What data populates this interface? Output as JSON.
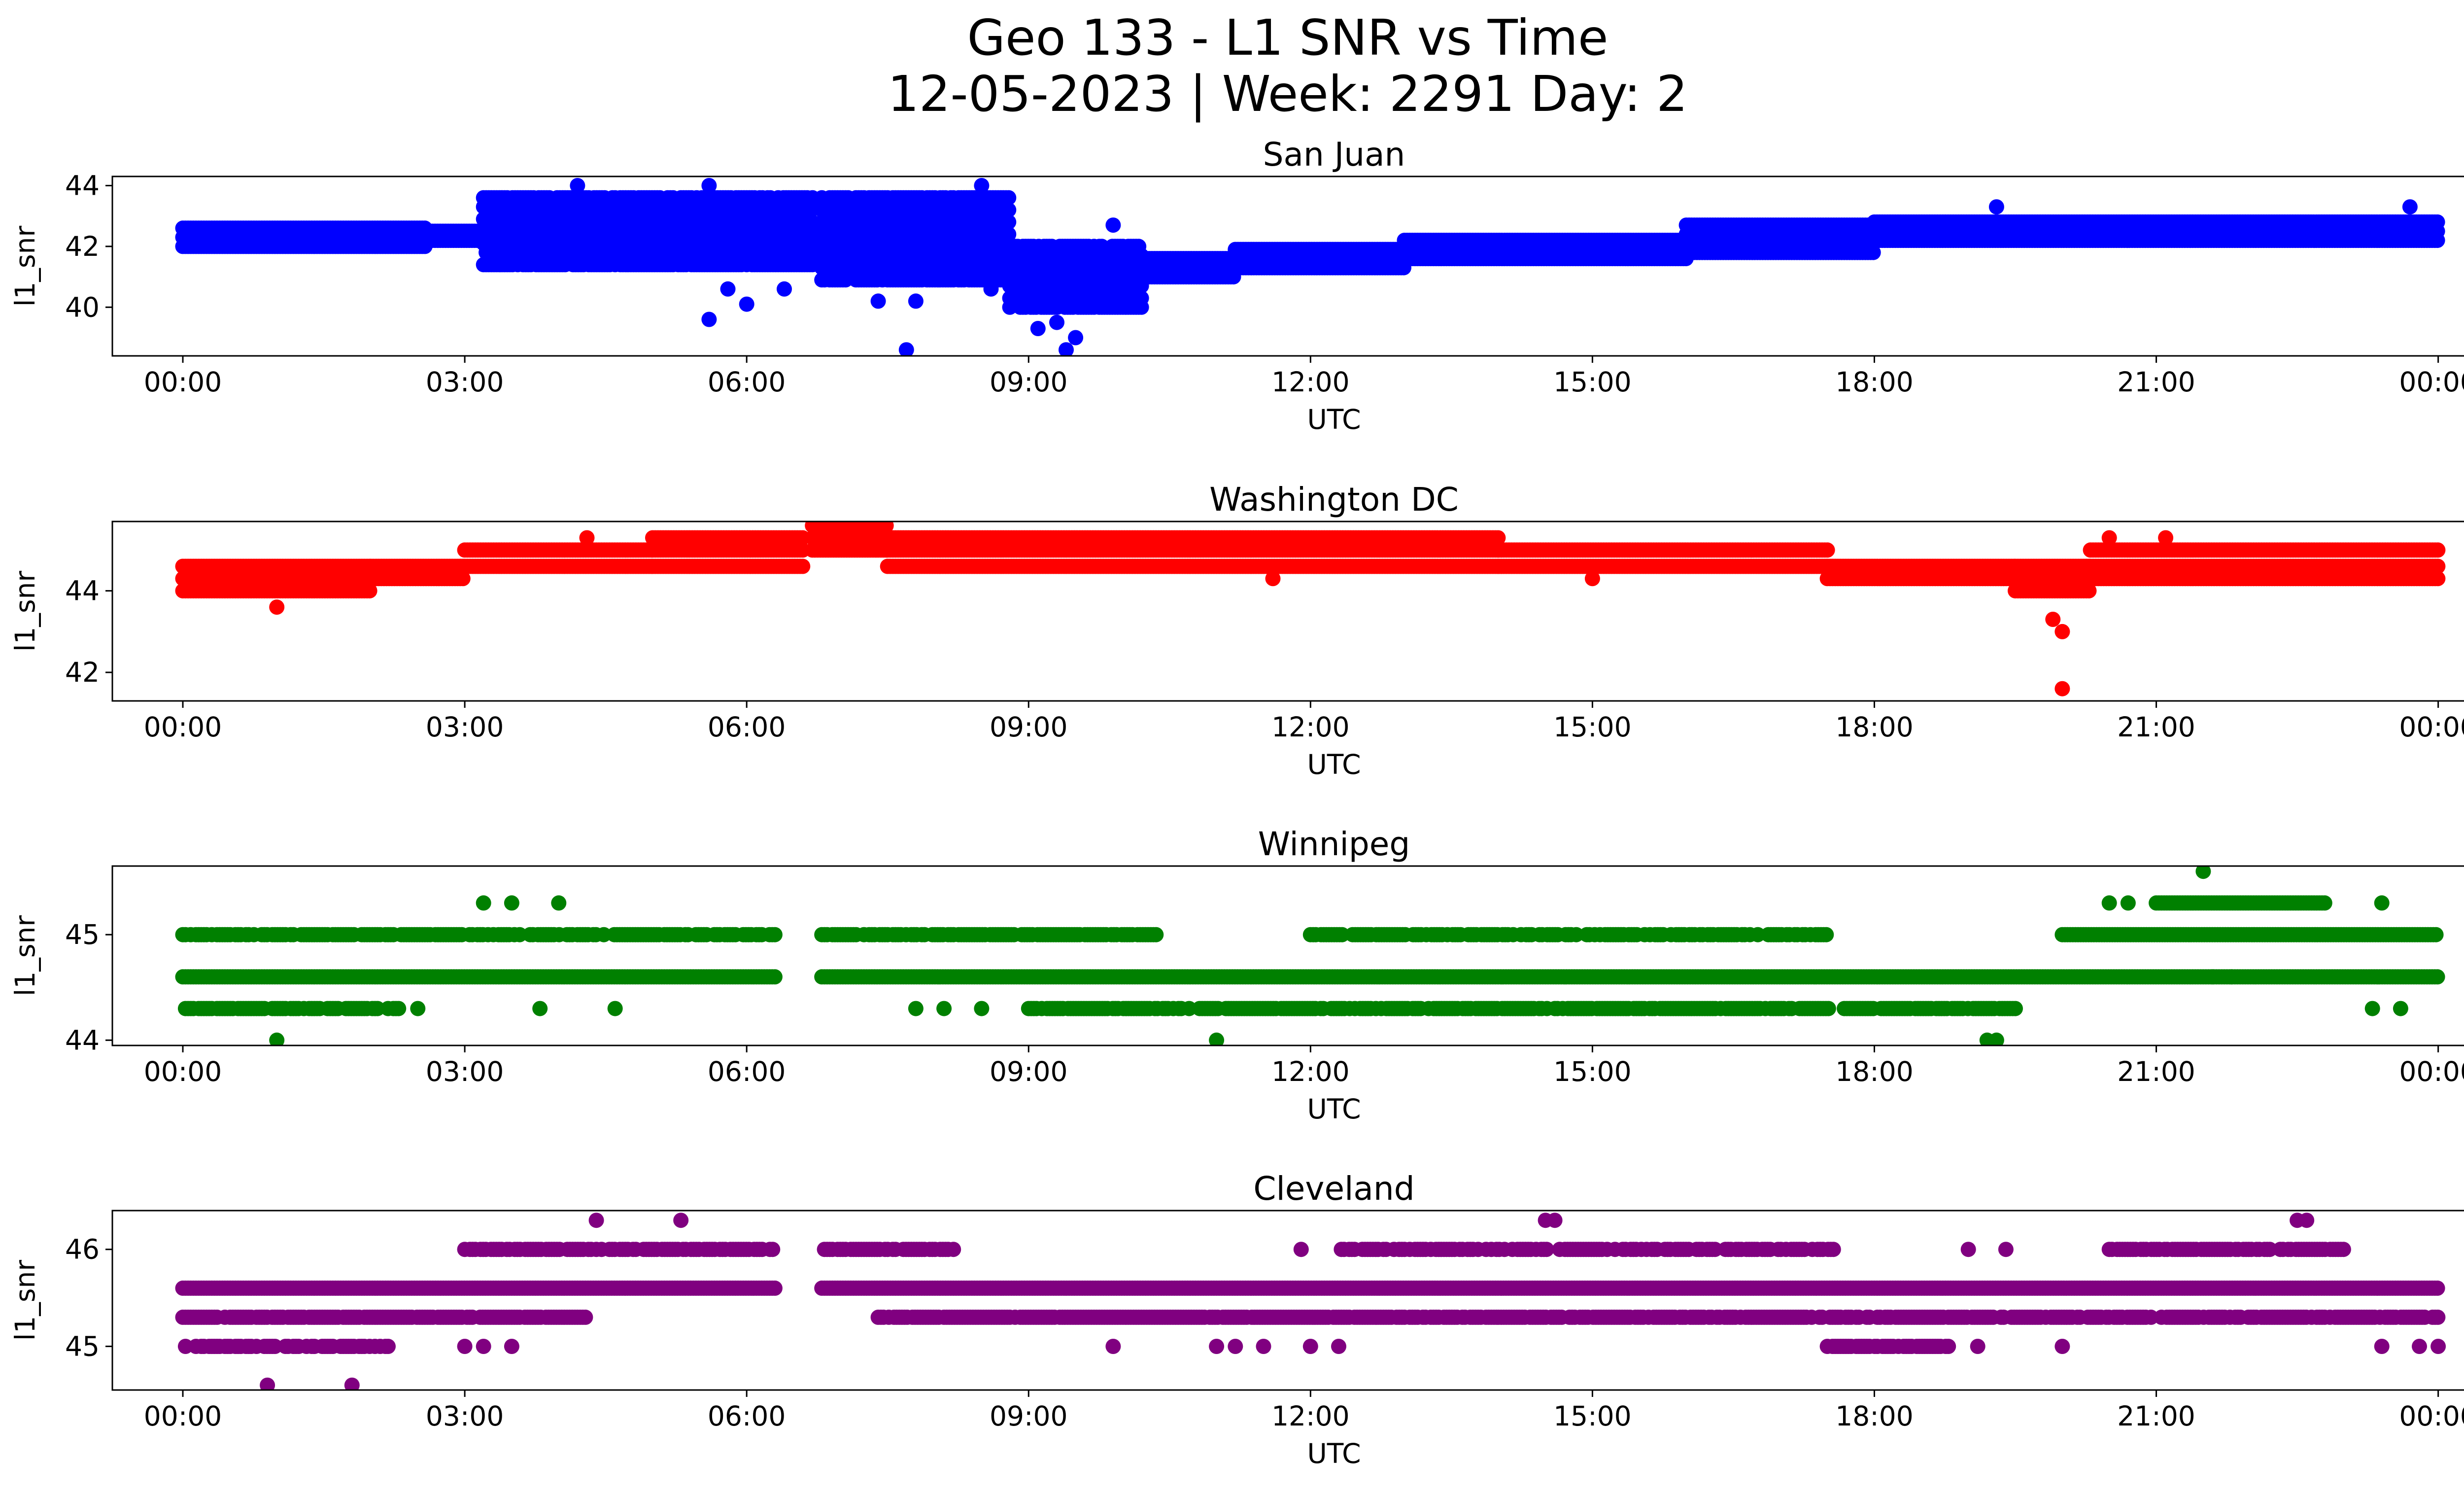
{
  "title_line1": "Geo 133 - L1 SNR vs Time",
  "title_line2": "12-05-2023 | Week: 2291 Day: 2",
  "x_ticks": [
    "00:00",
    "03:00",
    "06:00",
    "09:00",
    "12:00",
    "15:00",
    "18:00",
    "21:00",
    "00:00"
  ],
  "chart_data": [
    {
      "type": "scatter",
      "title": "San Juan",
      "xlabel": "UTC",
      "ylabel": "l1_snr",
      "xlim": [
        -0.75,
        25.25
      ],
      "ylim": [
        38.4,
        44.3
      ],
      "yticks": [
        40,
        42,
        44
      ],
      "color": "#0000ff",
      "gaps": [
        [
          6.7,
          6.8
        ]
      ],
      "segments": [
        {
          "x": [
            0,
            2.6
          ],
          "levels": [
            42.0,
            42.3,
            42.6
          ],
          "density": 1.0
        },
        {
          "x": [
            2.6,
            3.2
          ],
          "levels": [
            42.2,
            42.5
          ],
          "density": 1.0
        },
        {
          "x": [
            3.2,
            6.7
          ],
          "levels": [
            41.4,
            41.8,
            42.1,
            42.5,
            42.9,
            43.3,
            43.6
          ],
          "density": 0.85
        },
        {
          "x": [
            6.8,
            8.8
          ],
          "levels": [
            40.9,
            41.3,
            41.6,
            42.0,
            42.4,
            42.8,
            43.2,
            43.6
          ],
          "density": 0.85
        },
        {
          "x": [
            8.8,
            10.2
          ],
          "levels": [
            40.0,
            40.3,
            40.7,
            41.0,
            41.3,
            41.7,
            42.0
          ],
          "density": 0.8
        },
        {
          "x": [
            10.2,
            11.2
          ],
          "levels": [
            41.0,
            41.3,
            41.6
          ],
          "density": 1.0
        },
        {
          "x": [
            11.2,
            13.0
          ],
          "levels": [
            41.3,
            41.6,
            41.9
          ],
          "density": 1.0
        },
        {
          "x": [
            13.0,
            16.0
          ],
          "levels": [
            41.6,
            41.9,
            42.2
          ],
          "density": 1.0
        },
        {
          "x": [
            16.0,
            18.0
          ],
          "levels": [
            41.8,
            42.1,
            42.4,
            42.7
          ],
          "density": 1.0
        },
        {
          "x": [
            18.0,
            24.0
          ],
          "levels": [
            42.2,
            42.5,
            42.8
          ],
          "density": 1.0
        }
      ],
      "outliers": [
        {
          "x": 4.2,
          "y": 44.0
        },
        {
          "x": 5.6,
          "y": 44.0
        },
        {
          "x": 5.6,
          "y": 39.6
        },
        {
          "x": 8.5,
          "y": 44.0
        },
        {
          "x": 7.7,
          "y": 38.6
        },
        {
          "x": 9.4,
          "y": 38.6
        },
        {
          "x": 9.5,
          "y": 39.0
        },
        {
          "x": 9.1,
          "y": 39.3
        },
        {
          "x": 9.3,
          "y": 39.5
        },
        {
          "x": 7.4,
          "y": 40.2
        },
        {
          "x": 7.8,
          "y": 40.2
        },
        {
          "x": 8.6,
          "y": 40.6
        },
        {
          "x": 5.8,
          "y": 40.6
        },
        {
          "x": 6.0,
          "y": 40.1
        },
        {
          "x": 6.4,
          "y": 40.6
        },
        {
          "x": 9.9,
          "y": 42.7
        },
        {
          "x": 19.3,
          "y": 43.3
        },
        {
          "x": 23.7,
          "y": 43.3
        }
      ]
    },
    {
      "type": "scatter",
      "title": "Washington DC",
      "xlabel": "UTC",
      "ylabel": "l1_snr",
      "xlim": [
        -0.75,
        25.25
      ],
      "ylim": [
        41.3,
        45.7
      ],
      "yticks": [
        42,
        44
      ],
      "color": "#ff0000",
      "gaps": [
        [
          6.6,
          6.7
        ]
      ],
      "segments": [
        {
          "x": [
            0,
            2.0
          ],
          "levels": [
            44.0,
            44.3,
            44.6
          ],
          "density": 1.0
        },
        {
          "x": [
            2.0,
            3.0
          ],
          "levels": [
            44.3,
            44.6
          ],
          "density": 1.0
        },
        {
          "x": [
            3.0,
            5.0
          ],
          "levels": [
            44.6,
            45.0
          ],
          "density": 1.0
        },
        {
          "x": [
            5.0,
            6.6
          ],
          "levels": [
            44.6,
            45.0,
            45.3
          ],
          "density": 1.0
        },
        {
          "x": [
            6.7,
            7.5
          ],
          "levels": [
            45.0,
            45.3,
            45.6
          ],
          "density": 1.0
        },
        {
          "x": [
            7.5,
            14.0
          ],
          "levels": [
            44.6,
            45.0,
            45.3
          ],
          "density": 1.0
        },
        {
          "x": [
            14.0,
            17.5
          ],
          "levels": [
            44.6,
            45.0
          ],
          "density": 1.0
        },
        {
          "x": [
            17.5,
            19.5
          ],
          "levels": [
            44.3,
            44.6
          ],
          "density": 1.0
        },
        {
          "x": [
            19.5,
            20.3
          ],
          "levels": [
            44.0,
            44.3,
            44.6
          ],
          "density": 1.0
        },
        {
          "x": [
            20.3,
            24.0
          ],
          "levels": [
            44.3,
            44.6,
            45.0
          ],
          "density": 1.0
        }
      ],
      "outliers": [
        {
          "x": 1.0,
          "y": 43.6
        },
        {
          "x": 19.9,
          "y": 43.3
        },
        {
          "x": 20.0,
          "y": 43.0
        },
        {
          "x": 20.0,
          "y": 41.6
        },
        {
          "x": 20.5,
          "y": 45.3
        },
        {
          "x": 21.1,
          "y": 45.3
        },
        {
          "x": 4.3,
          "y": 45.3
        },
        {
          "x": 11.6,
          "y": 44.3
        },
        {
          "x": 15.0,
          "y": 44.3
        }
      ]
    },
    {
      "type": "scatter",
      "title": "Winnipeg",
      "xlabel": "UTC",
      "ylabel": "l1_snr",
      "xlim": [
        -0.75,
        25.25
      ],
      "ylim": [
        43.95,
        45.65
      ],
      "yticks": [
        44,
        45
      ],
      "color": "#008000",
      "gaps": [
        [
          6.3,
          6.8
        ]
      ],
      "segments": [
        {
          "x": [
            0,
            6.7
          ],
          "levels": [
            44.6
          ],
          "density": 1.0
        },
        {
          "x": [
            6.8,
            24.0
          ],
          "levels": [
            44.6
          ],
          "density": 1.0
        },
        {
          "x": [
            0,
            6.3
          ],
          "levels": [
            45.0
          ],
          "density": 0.75
        },
        {
          "x": [
            6.8,
            10.4
          ],
          "levels": [
            45.0
          ],
          "density": 0.85
        },
        {
          "x": [
            12.0,
            17.5
          ],
          "levels": [
            45.0
          ],
          "density": 0.7
        },
        {
          "x": [
            20.0,
            24.0
          ],
          "levels": [
            45.0
          ],
          "density": 1.0
        },
        {
          "x": [
            0,
            2.3
          ],
          "levels": [
            44.3
          ],
          "density": 0.75
        },
        {
          "x": [
            9.0,
            19.5
          ],
          "levels": [
            44.3
          ],
          "density": 0.85
        },
        {
          "x": [
            21.0,
            22.8
          ],
          "levels": [
            45.3
          ],
          "density": 1.0
        }
      ],
      "outliers": [
        {
          "x": 1.0,
          "y": 44.0
        },
        {
          "x": 11.0,
          "y": 44.0
        },
        {
          "x": 19.3,
          "y": 44.0
        },
        {
          "x": 19.2,
          "y": 44.0
        },
        {
          "x": 21.5,
          "y": 45.6
        },
        {
          "x": 3.2,
          "y": 45.3
        },
        {
          "x": 3.5,
          "y": 45.3
        },
        {
          "x": 4.0,
          "y": 45.3
        },
        {
          "x": 20.5,
          "y": 45.3
        },
        {
          "x": 20.7,
          "y": 45.3
        },
        {
          "x": 23.4,
          "y": 45.3
        },
        {
          "x": 23.3,
          "y": 44.3
        },
        {
          "x": 23.6,
          "y": 44.3
        },
        {
          "x": 21.6,
          "y": 44.6
        },
        {
          "x": 21.8,
          "y": 44.6
        },
        {
          "x": 2.5,
          "y": 44.3
        },
        {
          "x": 3.8,
          "y": 44.3
        },
        {
          "x": 4.6,
          "y": 44.3
        },
        {
          "x": 7.8,
          "y": 44.3
        },
        {
          "x": 8.1,
          "y": 44.3
        },
        {
          "x": 8.5,
          "y": 44.3
        }
      ]
    },
    {
      "type": "scatter",
      "title": "Cleveland",
      "xlabel": "UTC",
      "ylabel": "l1_snr",
      "xlim": [
        -0.75,
        25.25
      ],
      "ylim": [
        44.55,
        46.4
      ],
      "yticks": [
        45,
        46
      ],
      "color": "#800080",
      "gaps": [
        [
          6.3,
          6.8
        ]
      ],
      "segments": [
        {
          "x": [
            0,
            6.3
          ],
          "levels": [
            45.6
          ],
          "density": 1.0
        },
        {
          "x": [
            6.8,
            24.0
          ],
          "levels": [
            45.6
          ],
          "density": 1.0
        },
        {
          "x": [
            0,
            4.3
          ],
          "levels": [
            45.3
          ],
          "density": 0.9
        },
        {
          "x": [
            7.4,
            14.0
          ],
          "levels": [
            45.3
          ],
          "density": 0.9
        },
        {
          "x": [
            14.0,
            24.0
          ],
          "levels": [
            45.3
          ],
          "density": 0.85
        },
        {
          "x": [
            0,
            2.2
          ],
          "levels": [
            45.0
          ],
          "density": 0.7
        },
        {
          "x": [
            3.0,
            6.3
          ],
          "levels": [
            46.0
          ],
          "density": 0.75
        },
        {
          "x": [
            6.8,
            8.2
          ],
          "levels": [
            46.0
          ],
          "density": 0.85
        },
        {
          "x": [
            12.3,
            17.6
          ],
          "levels": [
            46.0
          ],
          "density": 0.6
        },
        {
          "x": [
            20.5,
            23.0
          ],
          "levels": [
            46.0
          ],
          "density": 0.75
        },
        {
          "x": [
            17.5,
            18.8
          ],
          "levels": [
            45.0
          ],
          "density": 0.85
        }
      ],
      "outliers": [
        {
          "x": 0.9,
          "y": 44.6
        },
        {
          "x": 1.8,
          "y": 44.6
        },
        {
          "x": 4.4,
          "y": 46.3
        },
        {
          "x": 5.3,
          "y": 46.3
        },
        {
          "x": 14.5,
          "y": 46.3
        },
        {
          "x": 14.6,
          "y": 46.3
        },
        {
          "x": 22.5,
          "y": 46.3
        },
        {
          "x": 22.6,
          "y": 46.3
        },
        {
          "x": 9.9,
          "y": 45.0
        },
        {
          "x": 11.0,
          "y": 45.0
        },
        {
          "x": 11.2,
          "y": 45.0
        },
        {
          "x": 11.5,
          "y": 45.0
        },
        {
          "x": 12.0,
          "y": 45.0
        },
        {
          "x": 12.3,
          "y": 45.0
        },
        {
          "x": 19.1,
          "y": 45.0
        },
        {
          "x": 20.0,
          "y": 45.0
        },
        {
          "x": 23.4,
          "y": 45.0
        },
        {
          "x": 23.8,
          "y": 45.0
        },
        {
          "x": 24.0,
          "y": 45.0
        },
        {
          "x": 11.9,
          "y": 46.0
        },
        {
          "x": 19.0,
          "y": 46.0
        },
        {
          "x": 19.4,
          "y": 46.0
        },
        {
          "x": 3.0,
          "y": 45.0
        },
        {
          "x": 3.2,
          "y": 45.0
        },
        {
          "x": 3.5,
          "y": 45.0
        }
      ]
    }
  ]
}
